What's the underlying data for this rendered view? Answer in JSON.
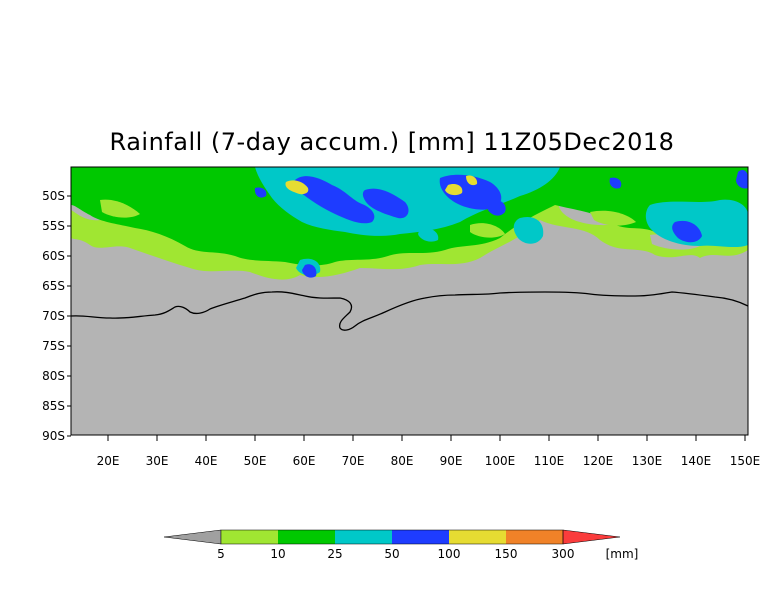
{
  "title": "Rainfall (7-day accum.) [mm] 11Z05Dec2018",
  "colors": {
    "land": "#b4b4b4",
    "below_min": "#a0a0a0",
    "c5_10": "#a0e632",
    "c10_25": "#00c800",
    "c25_50": "#00c8c8",
    "c50_100": "#1e3cff",
    "c100_150": "#e6dc32",
    "c150_300": "#f08228",
    "c300_plus": "#fa3c3c",
    "coast": "#000000"
  },
  "lat_labels": [
    "50S",
    "55S",
    "60S",
    "65S",
    "70S",
    "75S",
    "80S",
    "85S",
    "90S"
  ],
  "lon_labels": [
    "20E",
    "30E",
    "40E",
    "50E",
    "60E",
    "70E",
    "80E",
    "90E",
    "100E",
    "110E",
    "120E",
    "130E",
    "140E",
    "150E"
  ],
  "colorbar": {
    "levels": [
      "5",
      "10",
      "25",
      "50",
      "100",
      "150",
      "300"
    ],
    "unit": "[mm]"
  }
}
